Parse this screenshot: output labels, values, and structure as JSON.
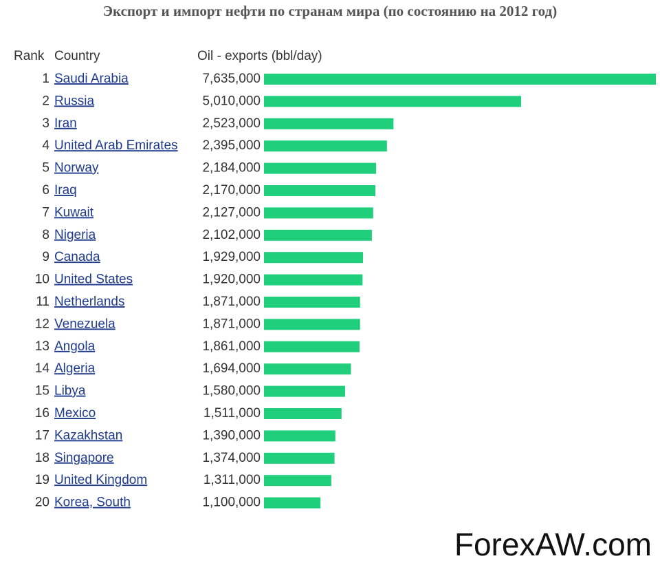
{
  "chart_data": {
    "type": "bar",
    "orientation": "horizontal",
    "title": "Экспорт и импорт нефти по странам мира (по состоянию на 2012 год)",
    "rank_header": "Rank",
    "category_header": "Country",
    "value_header": "Oil - exports (bbl/day)",
    "ranks": [
      1,
      2,
      3,
      4,
      5,
      6,
      7,
      8,
      9,
      10,
      11,
      12,
      13,
      14,
      15,
      16,
      17,
      18,
      19,
      20
    ],
    "categories": [
      "Saudi Arabia",
      "Russia",
      "Iran",
      "United Arab Emirates",
      "Norway",
      "Iraq",
      "Kuwait",
      "Nigeria",
      "Canada",
      "United States",
      "Netherlands",
      "Venezuela",
      "Angola",
      "Algeria",
      "Libya",
      "Mexico",
      "Kazakhstan",
      "Singapore",
      "United Kingdom",
      "Korea, South"
    ],
    "values": [
      7635000,
      5010000,
      2523000,
      2395000,
      2184000,
      2170000,
      2127000,
      2102000,
      1929000,
      1920000,
      1871000,
      1871000,
      1861000,
      1694000,
      1580000,
      1511000,
      1390000,
      1374000,
      1311000,
      1100000
    ],
    "value_labels": [
      "7,635,000",
      "5,010,000",
      "2,523,000",
      "2,395,000",
      "2,184,000",
      "2,170,000",
      "2,127,000",
      "2,102,000",
      "1,929,000",
      "1,920,000",
      "1,871,000",
      "1,871,000",
      "1,861,000",
      "1,694,000",
      "1,580,000",
      "1,511,000",
      "1,390,000",
      "1,374,000",
      "1,311,000",
      "1,100,000"
    ],
    "color": "#1fcf7c",
    "watermark": "ForexAW.com"
  }
}
